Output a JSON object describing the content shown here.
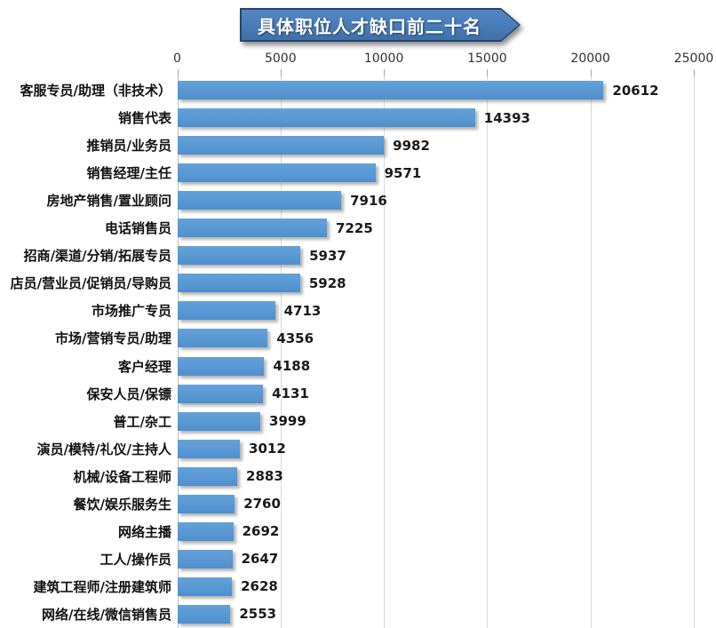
{
  "title": "具体职位人才缺口前二十名",
  "chart_data": {
    "type": "bar",
    "orientation": "horizontal",
    "title": "具体职位人才缺口前二十名",
    "categories": [
      "客服专员/助理（非技术）",
      "销售代表",
      "推销员/业务员",
      "销售经理/主任",
      "房地产销售/置业顾问",
      "电话销售员",
      "招商/渠道/分销/拓展专员",
      "店员/营业员/促销员/导购员",
      "市场推广专员",
      "市场/营销专员/助理",
      "客户经理",
      "保安人员/保镖",
      "普工/杂工",
      "演员/模特/礼仪/主持人",
      "机械/设备工程师",
      "餐饮/娱乐服务生",
      "网络主播",
      "工人/操作员",
      "建筑工程师/注册建筑师",
      "网络/在线/微信销售员"
    ],
    "values": [
      20612,
      14393,
      9982,
      9571,
      7916,
      7225,
      5937,
      5928,
      4713,
      4356,
      4188,
      4131,
      3999,
      3012,
      2883,
      2760,
      2692,
      2647,
      2628,
      2553
    ],
    "xlabel": "",
    "ylabel": "",
    "xlim": [
      0,
      25000
    ],
    "xticks": [
      0,
      5000,
      10000,
      15000,
      20000,
      25000
    ],
    "grid": "vertical",
    "legend": "none",
    "value_labels": true,
    "colors": {
      "bar": "#5898D4",
      "banner_fill": "#4A7EBB",
      "banner_border": "#24466E",
      "gridline": "#D8D8D8",
      "tick": "#A6A6A6",
      "label_text": "#111111"
    }
  }
}
